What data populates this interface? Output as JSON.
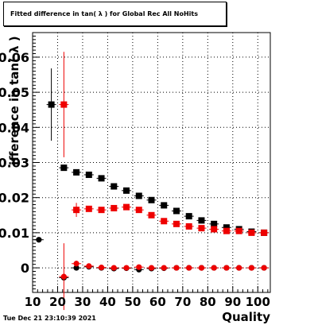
{
  "title": "Fitted difference in tan( λ ) for Global Rec All NoHits",
  "timestamp": "Tue Dec 21 23:10:39 2021",
  "chart_data": {
    "type": "scatter",
    "title": "Fitted difference in tan( λ ) for Global Rec All NoHits",
    "xlabel": "Quality",
    "ylabel": "ifference in tan( λ )",
    "xlim": [
      10,
      105
    ],
    "ylim": [
      -0.007,
      0.067
    ],
    "x_ticks": [
      10,
      20,
      30,
      40,
      50,
      60,
      70,
      80,
      90,
      100
    ],
    "x_tick_labels": [
      "10",
      "20",
      "30",
      "40",
      "50",
      "60",
      "70",
      "80",
      "90",
      "100"
    ],
    "y_ticks": [
      0,
      0.01,
      0.02,
      0.03,
      0.04,
      0.05,
      0.06
    ],
    "y_tick_labels": [
      "0",
      "0.01",
      "0.02",
      "0.03",
      "0.04",
      "0.05",
      "0.06"
    ],
    "grid": true,
    "legend": "none",
    "series": [
      {
        "color": "#000000",
        "marker": "square",
        "points": [
          {
            "x": 17.5,
            "y": 0.0465,
            "yerr": 0.0103
          },
          {
            "x": 22.5,
            "y": 0.0285,
            "yerr": 0.0
          },
          {
            "x": 27.5,
            "y": 0.0272,
            "yerr": 0.0
          },
          {
            "x": 32.5,
            "y": 0.0265,
            "yerr": 0.0
          },
          {
            "x": 37.5,
            "y": 0.0255,
            "yerr": 0.0
          },
          {
            "x": 42.5,
            "y": 0.0232,
            "yerr": 0.0
          },
          {
            "x": 47.5,
            "y": 0.022,
            "yerr": 0.0
          },
          {
            "x": 52.5,
            "y": 0.0205,
            "yerr": 0.0
          },
          {
            "x": 57.5,
            "y": 0.0193,
            "yerr": 0.0
          },
          {
            "x": 62.5,
            "y": 0.0178,
            "yerr": 0.0
          },
          {
            "x": 67.5,
            "y": 0.0162,
            "yerr": 0.0
          },
          {
            "x": 72.5,
            "y": 0.0147,
            "yerr": 0.0
          },
          {
            "x": 77.5,
            "y": 0.0135,
            "yerr": 0.0
          },
          {
            "x": 82.5,
            "y": 0.0125,
            "yerr": 0.0
          },
          {
            "x": 87.5,
            "y": 0.0115,
            "yerr": 0.0
          },
          {
            "x": 92.5,
            "y": 0.011,
            "yerr": 0.0
          },
          {
            "x": 97.5,
            "y": 0.0103,
            "yerr": 0.0
          },
          {
            "x": 102.5,
            "y": 0.01,
            "yerr": 0.0
          }
        ]
      },
      {
        "color": "#ee0000",
        "marker": "square",
        "points": [
          {
            "x": 22.5,
            "y": 0.0465,
            "yerr": 0.015
          },
          {
            "x": 27.5,
            "y": 0.0165,
            "yerr": 0.002
          },
          {
            "x": 32.5,
            "y": 0.0168,
            "yerr": 0.0
          },
          {
            "x": 37.5,
            "y": 0.0165,
            "yerr": 0.0
          },
          {
            "x": 42.5,
            "y": 0.017,
            "yerr": 0.0
          },
          {
            "x": 47.5,
            "y": 0.0173,
            "yerr": 0.0
          },
          {
            "x": 52.5,
            "y": 0.0165,
            "yerr": 0.0
          },
          {
            "x": 57.5,
            "y": 0.015,
            "yerr": 0.0
          },
          {
            "x": 62.5,
            "y": 0.0133,
            "yerr": 0.0
          },
          {
            "x": 67.5,
            "y": 0.0125,
            "yerr": 0.0
          },
          {
            "x": 72.5,
            "y": 0.0118,
            "yerr": 0.0
          },
          {
            "x": 77.5,
            "y": 0.0113,
            "yerr": 0.0
          },
          {
            "x": 82.5,
            "y": 0.011,
            "yerr": 0.0
          },
          {
            "x": 87.5,
            "y": 0.0105,
            "yerr": 0.0
          },
          {
            "x": 92.5,
            "y": 0.0105,
            "yerr": 0.0
          },
          {
            "x": 97.5,
            "y": 0.01,
            "yerr": 0.0
          },
          {
            "x": 102.5,
            "y": 0.01,
            "yerr": 0.0
          }
        ]
      },
      {
        "color": "#000000",
        "marker": "circle",
        "points": [
          {
            "x": 12.5,
            "y": 0.008,
            "yerr": 0.0
          },
          {
            "x": 22.5,
            "y": -0.0028,
            "yerr": 0.0
          },
          {
            "x": 27.5,
            "y": 0.0,
            "yerr": 0.0
          },
          {
            "x": 32.5,
            "y": 0.0003,
            "yerr": 0.0
          },
          {
            "x": 37.5,
            "y": 0.0,
            "yerr": 0.0
          },
          {
            "x": 42.5,
            "y": -0.0002,
            "yerr": 0.0
          },
          {
            "x": 47.5,
            "y": -0.0001,
            "yerr": 0.0
          },
          {
            "x": 52.5,
            "y": -0.0005,
            "yerr": 0.0
          },
          {
            "x": 57.5,
            "y": -0.0002,
            "yerr": 0.0
          },
          {
            "x": 62.5,
            "y": -0.0001,
            "yerr": 0.0
          },
          {
            "x": 67.5,
            "y": 0.0,
            "yerr": 0.0
          },
          {
            "x": 72.5,
            "y": 0.0,
            "yerr": 0.0
          },
          {
            "x": 77.5,
            "y": 0.0,
            "yerr": 0.0
          },
          {
            "x": 82.5,
            "y": 0.0,
            "yerr": 0.0
          },
          {
            "x": 87.5,
            "y": 0.0,
            "yerr": 0.0
          },
          {
            "x": 92.5,
            "y": 0.0,
            "yerr": 0.0
          },
          {
            "x": 97.5,
            "y": 0.0,
            "yerr": 0.0
          },
          {
            "x": 102.5,
            "y": 0.0,
            "yerr": 0.0
          }
        ]
      },
      {
        "color": "#ee0000",
        "marker": "circle",
        "points": [
          {
            "x": 22.5,
            "y": -0.0025,
            "yerr": 0.0095
          },
          {
            "x": 27.5,
            "y": 0.0012,
            "yerr": 0.0008
          },
          {
            "x": 32.5,
            "y": 0.0005,
            "yerr": 0.0
          },
          {
            "x": 37.5,
            "y": 0.0001,
            "yerr": 0.0
          },
          {
            "x": 42.5,
            "y": 0.0,
            "yerr": 0.0
          },
          {
            "x": 47.5,
            "y": 0.0,
            "yerr": 0.0
          },
          {
            "x": 52.5,
            "y": 0.0002,
            "yerr": 0.0
          },
          {
            "x": 57.5,
            "y": 0.0,
            "yerr": 0.0
          },
          {
            "x": 62.5,
            "y": 0.0,
            "yerr": 0.0
          },
          {
            "x": 67.5,
            "y": 0.0,
            "yerr": 0.0
          },
          {
            "x": 72.5,
            "y": 0.0,
            "yerr": 0.0
          },
          {
            "x": 77.5,
            "y": 0.0,
            "yerr": 0.0
          },
          {
            "x": 82.5,
            "y": 0.0,
            "yerr": 0.0
          },
          {
            "x": 87.5,
            "y": 0.0,
            "yerr": 0.0
          },
          {
            "x": 92.5,
            "y": 0.0,
            "yerr": 0.0
          },
          {
            "x": 97.5,
            "y": 0.0,
            "yerr": 0.0
          },
          {
            "x": 102.5,
            "y": 0.0,
            "yerr": 0.0
          }
        ]
      }
    ]
  }
}
